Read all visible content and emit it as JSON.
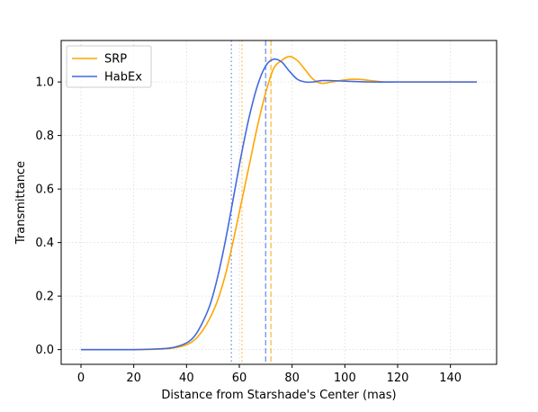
{
  "chart_data": {
    "type": "line",
    "title": "",
    "xlabel": "Distance from Starshade's Center (mas)",
    "ylabel": "Transmittance",
    "xlim": [
      -7.5,
      157.5
    ],
    "ylim": [
      -0.055,
      1.155
    ],
    "xticks": [
      0,
      20,
      40,
      60,
      80,
      100,
      120,
      140
    ],
    "yticks": [
      0.0,
      0.2,
      0.4,
      0.6,
      0.8,
      1.0
    ],
    "xtick_labels": [
      "0",
      "20",
      "40",
      "60",
      "80",
      "100",
      "120",
      "140"
    ],
    "ytick_labels": [
      "0.0",
      "0.2",
      "0.4",
      "0.6",
      "0.8",
      "1.0"
    ],
    "grid": true,
    "legend_position": "top-left",
    "series": [
      {
        "name": "SRP",
        "color": "#FFA500",
        "x": [
          0,
          10,
          20,
          30,
          35,
          40,
          43,
          46,
          49,
          52,
          55,
          58,
          61,
          64,
          67,
          70,
          73,
          76,
          79,
          82,
          85,
          88,
          91,
          95,
          100,
          105,
          110,
          115,
          120,
          130,
          140,
          150
        ],
        "y": [
          0.0,
          0.0,
          0.0,
          0.002,
          0.006,
          0.018,
          0.036,
          0.07,
          0.12,
          0.19,
          0.29,
          0.42,
          0.56,
          0.7,
          0.84,
          0.96,
          1.05,
          1.08,
          1.095,
          1.08,
          1.045,
          1.01,
          0.995,
          1.0,
          1.008,
          1.01,
          1.005,
          1.0,
          1.0,
          1.0,
          1.0,
          1.0
        ]
      },
      {
        "name": "HabEx",
        "color": "#4169E1",
        "x": [
          0,
          10,
          20,
          30,
          35,
          40,
          43,
          46,
          49,
          52,
          55,
          58,
          61,
          64,
          67,
          70,
          73,
          76,
          79,
          82,
          85,
          88,
          91,
          95,
          100,
          110,
          120,
          130,
          140,
          150
        ],
        "y": [
          0.0,
          0.0,
          0.0,
          0.003,
          0.008,
          0.025,
          0.05,
          0.1,
          0.17,
          0.28,
          0.42,
          0.58,
          0.74,
          0.88,
          0.99,
          1.06,
          1.085,
          1.075,
          1.04,
          1.01,
          1.0,
          1.0,
          1.005,
          1.005,
          1.003,
          1.0,
          1.0,
          1.0,
          1.0,
          1.0
        ]
      }
    ],
    "reference_lines": [
      {
        "x": 61,
        "color": "#FFA500",
        "style": "dotted"
      },
      {
        "x": 72,
        "color": "#FFA500",
        "style": "dashed"
      },
      {
        "x": 57,
        "color": "#4169E1",
        "style": "dotted"
      },
      {
        "x": 70,
        "color": "#4169E1",
        "style": "dashed"
      }
    ]
  }
}
